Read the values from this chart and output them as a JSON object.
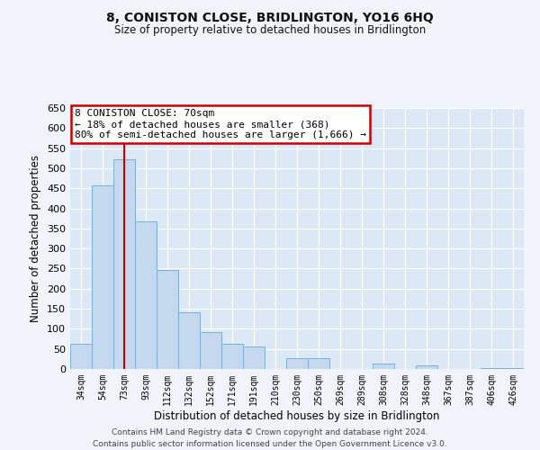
{
  "title": "8, CONISTON CLOSE, BRIDLINGTON, YO16 6HQ",
  "subtitle": "Size of property relative to detached houses in Bridlington",
  "xlabel": "Distribution of detached houses by size in Bridlington",
  "ylabel": "Number of detached properties",
  "categories": [
    "34sqm",
    "54sqm",
    "73sqm",
    "93sqm",
    "112sqm",
    "132sqm",
    "152sqm",
    "171sqm",
    "191sqm",
    "210sqm",
    "230sqm",
    "250sqm",
    "269sqm",
    "289sqm",
    "308sqm",
    "328sqm",
    "348sqm",
    "367sqm",
    "387sqm",
    "406sqm",
    "426sqm"
  ],
  "bar_values": [
    62,
    457,
    522,
    368,
    247,
    142,
    93,
    62,
    55,
    0,
    28,
    28,
    0,
    0,
    13,
    0,
    10,
    0,
    0,
    3,
    2
  ],
  "bar_color": "#c5d8ed",
  "bar_edge_color": "#7aafd4",
  "red_line_x": 2,
  "annotation_title": "8 CONISTON CLOSE: 70sqm",
  "annotation_line1": "← 18% of detached houses are smaller (368)",
  "annotation_line2": "80% of semi-detached houses are larger (1,666) →",
  "annotation_box_color": "#ffffff",
  "annotation_border_color": "#cc0000",
  "red_line_color": "#cc0000",
  "ylim": [
    0,
    650
  ],
  "yticks": [
    0,
    50,
    100,
    150,
    200,
    250,
    300,
    350,
    400,
    450,
    500,
    550,
    600,
    650
  ],
  "footer_line1": "Contains HM Land Registry data © Crown copyright and database right 2024.",
  "footer_line2": "Contains public sector information licensed under the Open Government Licence v3.0.",
  "fig_bg_color": "#f0f4fa",
  "plot_bg_color": "#dce8f5"
}
